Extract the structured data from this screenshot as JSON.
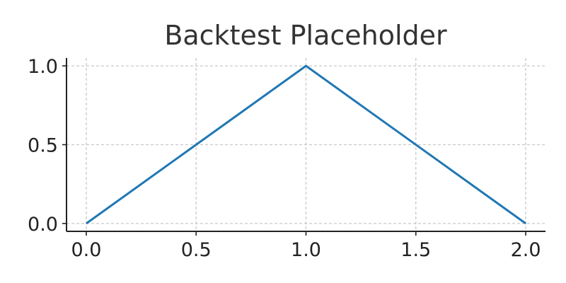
{
  "chart_data": {
    "type": "line",
    "title": "Backtest Placeholder",
    "xlabel": "",
    "ylabel": "",
    "x": [
      0,
      1,
      2
    ],
    "series": [
      {
        "values": [
          0,
          1,
          0
        ],
        "color": "#1f77b4"
      }
    ],
    "xlim": [
      -0.09,
      2.09
    ],
    "ylim": [
      -0.05,
      1.05
    ],
    "xticks": [
      0.0,
      0.5,
      1.0,
      1.5,
      2.0
    ],
    "xtick_labels": [
      "0.0",
      "0.5",
      "1.0",
      "1.5",
      "2.0"
    ],
    "yticks": [
      0.0,
      0.5,
      1.0
    ],
    "ytick_labels": [
      "0.0",
      "0.5",
      "1.0"
    ],
    "grid": true,
    "grid_style": "dashed",
    "legend": "none"
  }
}
